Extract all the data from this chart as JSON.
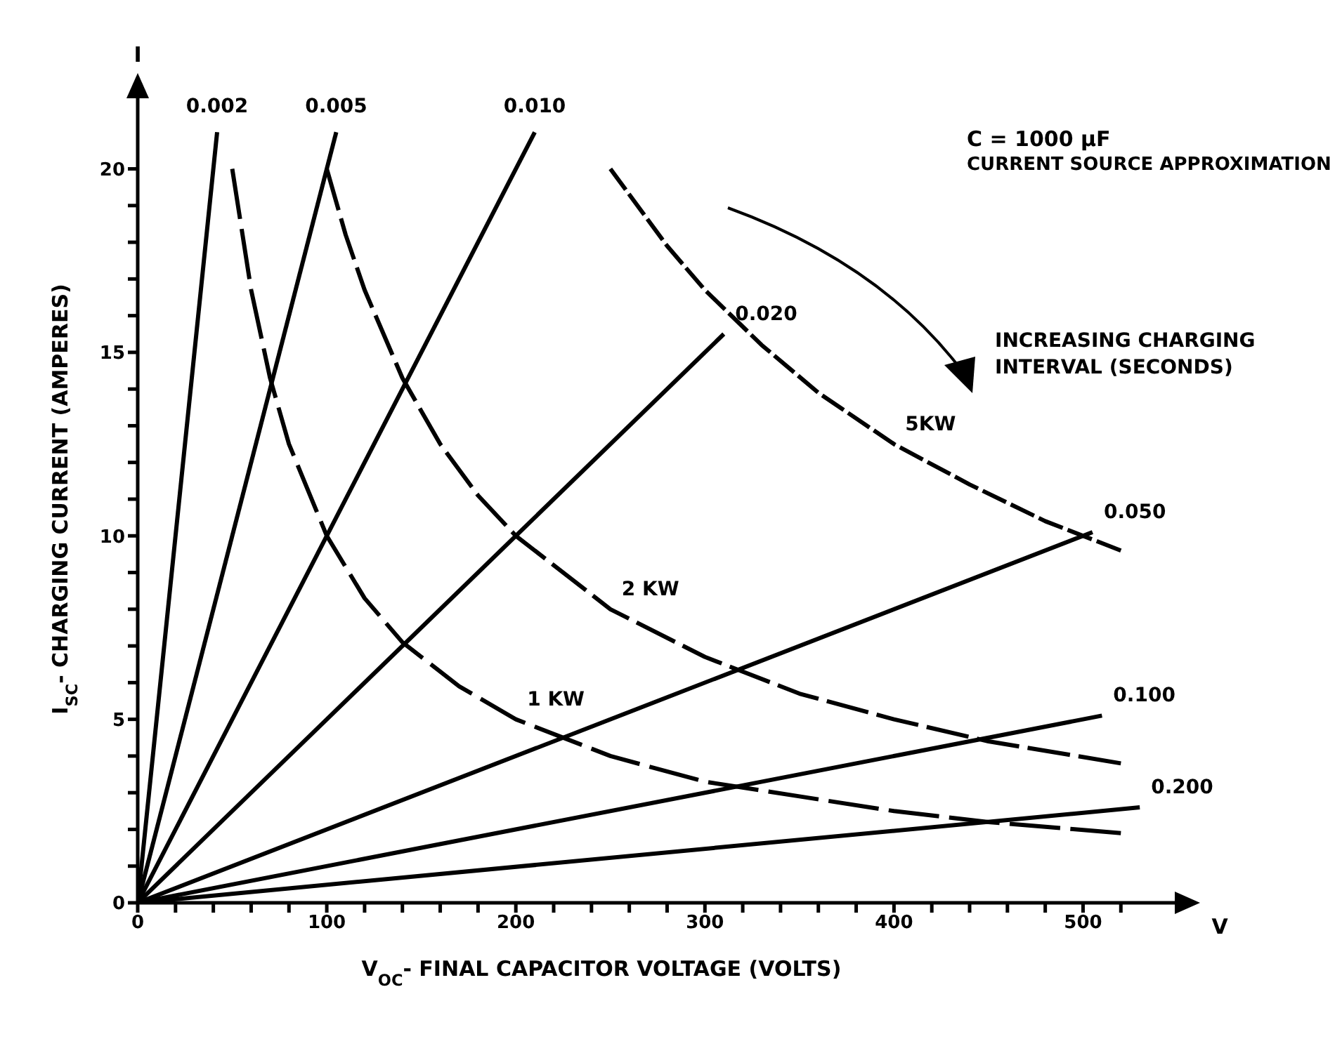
{
  "chart_data": {
    "type": "line",
    "title": "C = 1000 µF",
    "subtitle": "CURRENT SOURCE APPROXIMATION",
    "xlabel": "V$_{OC}$- FINAL CAPACITOR VOLTAGE (VOLTS)",
    "ylabel": "I$_{SC}$- CHARGING CURRENT (AMPERES)",
    "annotations": [
      "I",
      "V",
      "INCREASING CHARGING INTERVAL (SECONDS)"
    ],
    "xlim": [
      0,
      550
    ],
    "ylim": [
      0,
      22
    ],
    "xticks": [
      0,
      {
        "value": 20,
        "label": null
      },
      {
        "value": 40,
        "label": null
      },
      {
        "value": 60,
        "label": null
      },
      {
        "value": 80,
        "label": null
      },
      100,
      {
        "value": 120,
        "label": null
      },
      {
        "value": 140,
        "label": null
      },
      {
        "value": 160,
        "label": null
      },
      {
        "value": 180,
        "label": null
      },
      200,
      {
        "value": 220,
        "label": null
      },
      {
        "value": 240,
        "label": null
      },
      {
        "value": 260,
        "label": null
      },
      {
        "value": 280,
        "label": null
      },
      300,
      {
        "value": 320,
        "label": null
      },
      {
        "value": 340,
        "label": null
      },
      {
        "value": 360,
        "label": null
      },
      {
        "value": 380,
        "label": null
      },
      400,
      {
        "value": 420,
        "label": null
      },
      {
        "value": 440,
        "label": null
      },
      {
        "value": 460,
        "label": null
      },
      {
        "value": 480,
        "label": null
      },
      500,
      {
        "value": 520,
        "label": null
      }
    ],
    "yticks": [
      0,
      {
        "value": 1,
        "label": null
      },
      {
        "value": 2,
        "label": null
      },
      {
        "value": 3,
        "label": null
      },
      {
        "value": 4,
        "label": null
      },
      5,
      {
        "value": 6,
        "label": null
      },
      {
        "value": 7,
        "label": null
      },
      {
        "value": 8,
        "label": null
      },
      {
        "value": 9,
        "label": null
      },
      10,
      {
        "value": 11,
        "label": null
      },
      {
        "value": 12,
        "label": null
      },
      {
        "value": 13,
        "label": null
      },
      {
        "value": 14,
        "label": null
      },
      15,
      {
        "value": 16,
        "label": null
      },
      {
        "value": 17,
        "label": null
      },
      {
        "value": 18,
        "label": null
      },
      {
        "value": 19,
        "label": null
      },
      20
    ],
    "marker": "none",
    "line_style": "solid",
    "series": [
      {
        "name": "0.002",
        "color": "#000000",
        "x": [
          0,
          42
        ],
        "values": [
          0,
          21
        ]
      },
      {
        "name": "0.005",
        "color": "#000000",
        "x": [
          0,
          105
        ],
        "values": [
          0,
          21
        ]
      },
      {
        "name": "0.010",
        "color": "#000000",
        "x": [
          0,
          210
        ],
        "values": [
          0,
          21
        ]
      },
      {
        "name": "0.020",
        "color": "#000000",
        "x": [
          0,
          310
        ],
        "values": [
          0,
          15.5
        ]
      },
      {
        "name": "0.050",
        "color": "#000000",
        "x": [
          0,
          505
        ],
        "values": [
          0,
          10.1
        ]
      },
      {
        "name": "0.100",
        "color": "#000000",
        "x": [
          0,
          510
        ],
        "values": [
          0,
          5.1
        ]
      },
      {
        "name": "0.200",
        "color": "#000000",
        "x": [
          0,
          530
        ],
        "values": [
          0,
          2.6
        ]
      },
      {
        "name": "1 KW",
        "color": "#000000",
        "line_style": "dashed",
        "x": [
          50,
          60,
          70,
          80,
          100,
          120,
          140,
          170,
          200,
          250,
          300,
          350,
          400,
          450,
          520
        ],
        "values": [
          20,
          16.7,
          14.3,
          12.5,
          10,
          8.3,
          7.1,
          5.9,
          5,
          4,
          3.3,
          2.9,
          2.5,
          2.2,
          1.9
        ]
      },
      {
        "name": "2 KW",
        "color": "#000000",
        "line_style": "dashed",
        "x": [
          100,
          110,
          120,
          140,
          160,
          180,
          200,
          250,
          300,
          350,
          400,
          450,
          520
        ],
        "values": [
          20,
          18.2,
          16.7,
          14.3,
          12.5,
          11.1,
          10,
          8,
          6.7,
          5.7,
          5,
          4.4,
          3.8
        ]
      },
      {
        "name": "5KW",
        "color": "#000000",
        "line_style": "dashed",
        "x": [
          250,
          280,
          300,
          330,
          360,
          400,
          440,
          480,
          520
        ],
        "values": [
          20,
          17.9,
          16.7,
          15.2,
          13.9,
          12.5,
          11.4,
          10.4,
          9.6
        ]
      }
    ]
  }
}
